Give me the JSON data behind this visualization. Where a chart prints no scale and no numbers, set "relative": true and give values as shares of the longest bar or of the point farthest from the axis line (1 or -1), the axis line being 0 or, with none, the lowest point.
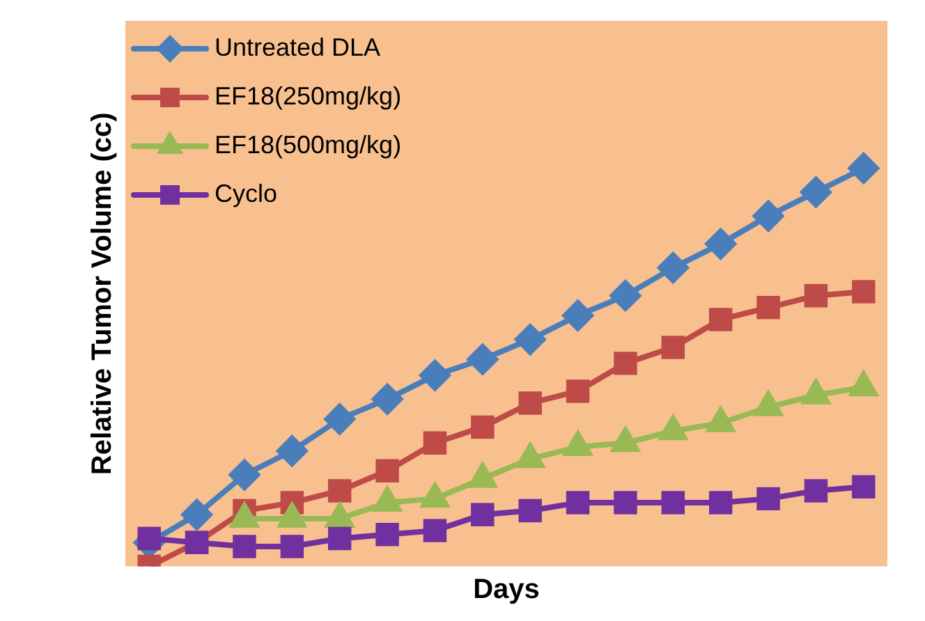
{
  "chart_data": {
    "type": "line",
    "relative": true,
    "xlabel": "Days",
    "ylabel": "Relative Tumor Volume (cc)",
    "legend": "top left",
    "grid": false,
    "line_style": "solid",
    "categories": [
      null,
      null,
      null,
      null,
      null,
      null,
      null,
      null,
      null,
      null,
      null,
      null,
      null,
      null,
      null,
      null
    ],
    "series": [
      {
        "name": "Untreated DLA",
        "color": "#4a7ebb",
        "marker": "diamond",
        "values": [
          0.06,
          0.13,
          0.23,
          0.29,
          0.37,
          0.42,
          0.48,
          0.52,
          0.57,
          0.63,
          0.68,
          0.75,
          0.81,
          0.88,
          0.94,
          1
        ]
      },
      {
        "name": "EF18(250mg/kg)",
        "color": "#be4b48",
        "marker": "square",
        "values": [
          0,
          0.06,
          0.14,
          0.16,
          0.19,
          0.24,
          0.31,
          0.35,
          0.41,
          0.44,
          0.51,
          0.55,
          0.62,
          0.65,
          0.68,
          0.69
        ]
      },
      {
        "name": "EF18(500mg/kg)",
        "color": "#98b954",
        "marker": "triangle",
        "values": [
          null,
          null,
          0.12,
          0.12,
          0.12,
          0.16,
          0.17,
          0.22,
          0.27,
          0.3,
          0.31,
          0.34,
          0.36,
          0.4,
          0.43,
          0.45
        ]
      },
      {
        "name": "Cyclo",
        "color": "#7030a0",
        "marker": "square",
        "values": [
          0.07,
          0.06,
          0.05,
          0.05,
          0.07,
          0.08,
          0.09,
          0.13,
          0.14,
          0.16,
          0.16,
          0.16,
          0.16,
          0.17,
          0.19,
          0.2
        ]
      }
    ]
  }
}
